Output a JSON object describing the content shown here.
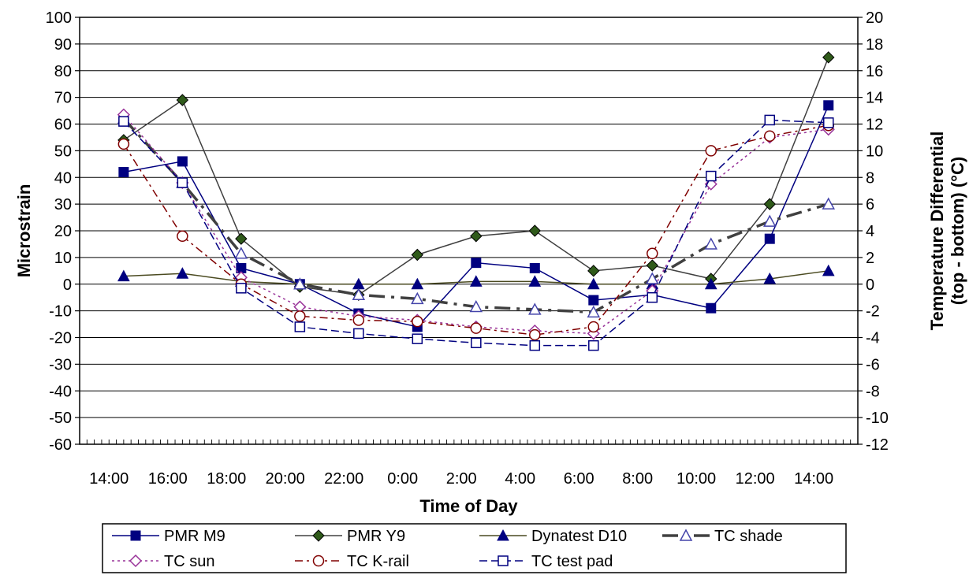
{
  "chart_data": {
    "type": "line",
    "xlabel": "Time of Day",
    "ylabel_left": "Microstrain",
    "ylabel_right_line1": "Temperature Differential",
    "ylabel_right_line2": "(top - bottom) (°C)",
    "ylim_left": [
      -60,
      100
    ],
    "ylim_right": [
      -12,
      20
    ],
    "yticks_left": [
      -60,
      -50,
      -40,
      -30,
      -20,
      -10,
      0,
      10,
      20,
      30,
      40,
      50,
      60,
      70,
      80,
      90,
      100
    ],
    "yticks_right": [
      -12,
      -10,
      -8,
      -6,
      -4,
      -2,
      0,
      2,
      4,
      6,
      8,
      10,
      12,
      14,
      16,
      18,
      20
    ],
    "categories": [
      "14:00",
      "16:00",
      "18:00",
      "20:00",
      "22:00",
      "0:00",
      "2:00",
      "4:00",
      "6:00",
      "8:00",
      "10:00",
      "12:00",
      "14:00"
    ],
    "x_hours": [
      14.5,
      16.5,
      18.5,
      20.5,
      22.5,
      24.5,
      26.5,
      28.5,
      30.5,
      32.5,
      34.5,
      36.5,
      38.5
    ],
    "xlim_hours": [
      13,
      39.5
    ],
    "xticks_hours": [
      14,
      16,
      18,
      20,
      22,
      24,
      26,
      28,
      30,
      32,
      34,
      36,
      38
    ],
    "grid": "horizontal",
    "legend_position": "bottom",
    "series": [
      {
        "name": "PMR M9",
        "axis": "left",
        "color": "#000080",
        "dash": "",
        "marker": "square-filled",
        "values": [
          42,
          46,
          6,
          0,
          -11,
          -16,
          8,
          6,
          -6,
          -4,
          -9,
          17,
          67
        ]
      },
      {
        "name": "PMR Y9",
        "axis": "left",
        "color": "#404040",
        "dash": "",
        "marker": "diamond-green",
        "values": [
          54,
          69,
          17,
          -1,
          -4,
          11,
          18,
          20,
          5,
          7,
          2,
          30,
          85
        ]
      },
      {
        "name": "Dynatest D10",
        "axis": "left",
        "color": "#4a4a20",
        "dash": "",
        "marker": "triangle-filled",
        "values": [
          3,
          4,
          1,
          0,
          0,
          0,
          1,
          1,
          0,
          0,
          0,
          2,
          5
        ]
      },
      {
        "name": "TC shade",
        "axis": "right",
        "color": "#404040",
        "dash": "20 8 4 8",
        "width": 3.5,
        "marker": "triangle-open",
        "values": [
          12.4,
          7.6,
          2.3,
          0,
          -0.8,
          -1.1,
          -1.7,
          -1.9,
          -2.1,
          0.4,
          3,
          4.7,
          6
        ]
      },
      {
        "name": "TC sun",
        "axis": "right",
        "color": "#993399",
        "dash": "3 4",
        "marker": "diamond-open",
        "values": [
          12.7,
          7.6,
          0.5,
          -1.7,
          -2.4,
          -2.7,
          -3.2,
          -3.5,
          -3.7,
          -0.5,
          7.5,
          11,
          11.6
        ]
      },
      {
        "name": "TC K-rail",
        "axis": "right",
        "color": "#800000",
        "dash": "10 5 3 5",
        "marker": "circle-open",
        "values": [
          10.5,
          3.6,
          0,
          -2.4,
          -2.7,
          -2.8,
          -3.3,
          -3.8,
          -3.2,
          2.3,
          10,
          11.1,
          11.9
        ]
      },
      {
        "name": "TC test pad",
        "axis": "right",
        "color": "#000080",
        "dash": "10 5",
        "marker": "square-open",
        "values": [
          12.2,
          7.6,
          -0.3,
          -3.2,
          -3.7,
          -4.1,
          -4.4,
          -4.6,
          -4.6,
          -1,
          8.1,
          12.3,
          12.1
        ]
      }
    ]
  }
}
